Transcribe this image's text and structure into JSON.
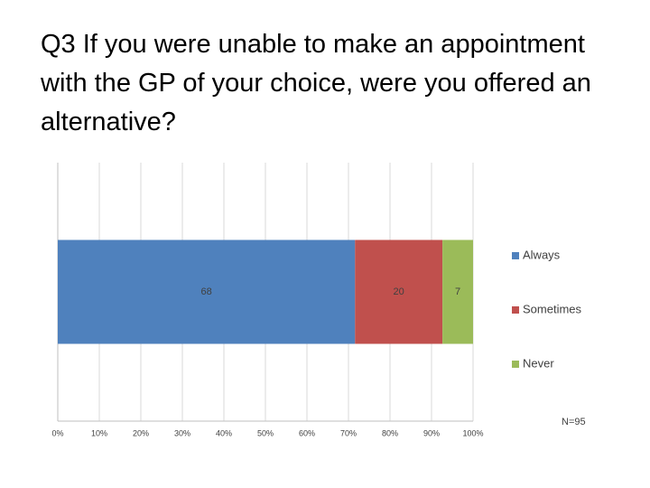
{
  "chart_data": {
    "type": "bar",
    "stacked": "percent",
    "orientation": "horizontal",
    "title": "Q3  If you were unable to make an appointment with the GP of your choice, were you offered an alternative?",
    "categories": [
      null
    ],
    "series": [
      {
        "name": "Always",
        "color": "#4f81bd",
        "values": [
          68
        ]
      },
      {
        "name": "Sometimes",
        "color": "#c0504d",
        "values": [
          20
        ]
      },
      {
        "name": "Never",
        "color": "#9bbb59",
        "values": [
          7
        ]
      }
    ],
    "xlim": [
      0,
      100
    ],
    "xticks": [
      {
        "value": 0,
        "label": "0%"
      },
      {
        "value": 10,
        "label": "10%"
      },
      {
        "value": 20,
        "label": "20%"
      },
      {
        "value": 30,
        "label": "30%"
      },
      {
        "value": 40,
        "label": "40%"
      },
      {
        "value": 50,
        "label": "50%"
      },
      {
        "value": 60,
        "label": "60%"
      },
      {
        "value": 70,
        "label": "70%"
      },
      {
        "value": 80,
        "label": "80%"
      },
      {
        "value": 90,
        "label": "90%"
      },
      {
        "value": 100,
        "label": "100%"
      }
    ],
    "grid": true,
    "legend": "right",
    "annotation": "N=95"
  }
}
